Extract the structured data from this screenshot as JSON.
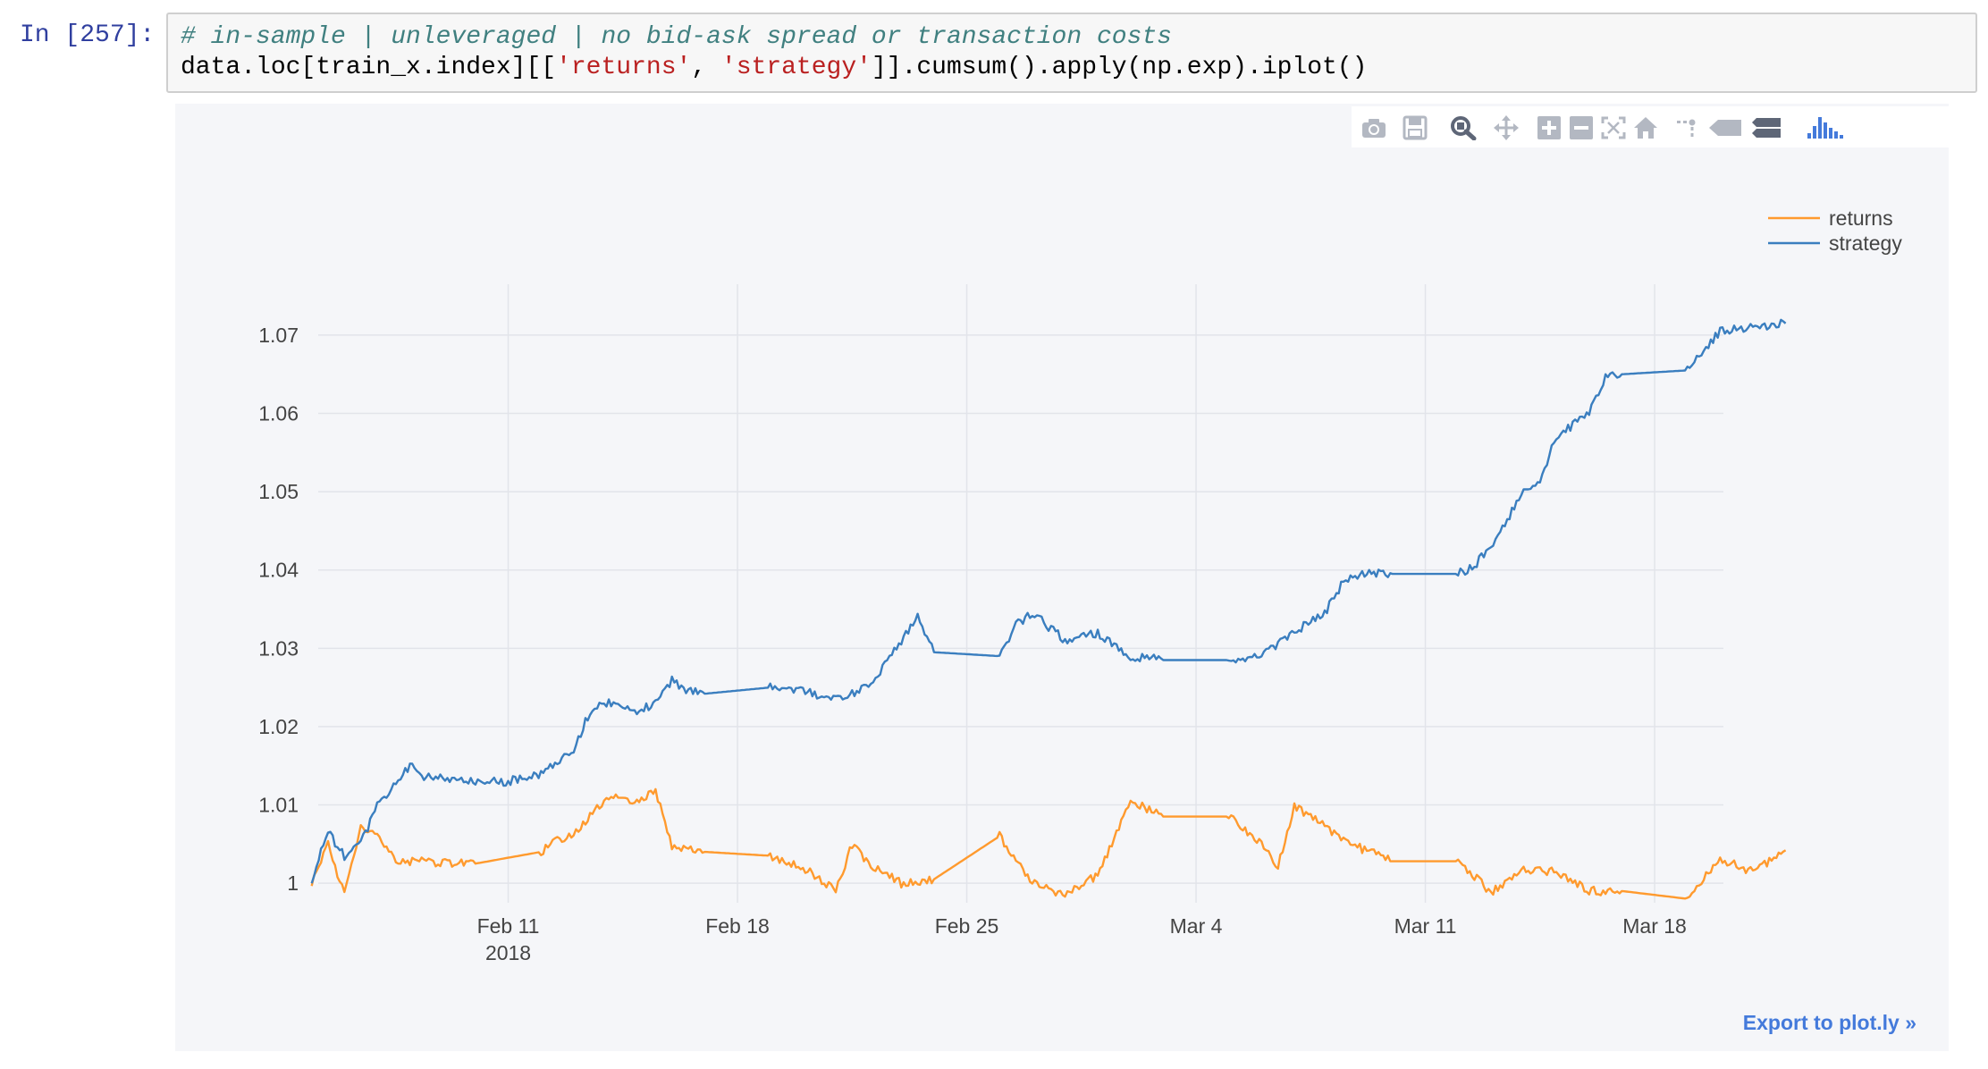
{
  "notebook": {
    "prompt": "In [257]:",
    "comment": "# in-sample | unleveraged | no bid-ask spread or transaction costs",
    "code_prefix": "data.loc[train_x.index][[",
    "code_str1": "'returns'",
    "code_sep": ", ",
    "code_str2": "'strategy'",
    "code_suffix": "]].cumsum().apply(np.exp).iplot()"
  },
  "modebar": {
    "icons": [
      "camera-icon",
      "save-icon",
      "zoom-icon",
      "pan-icon",
      "zoom-in-icon",
      "zoom-out-icon",
      "autoscale-icon",
      "home-icon",
      "spikelines-icon",
      "hover-closest-icon",
      "hover-compare-icon",
      "plotly-logo-icon"
    ]
  },
  "export_link": "Export to plot.ly »",
  "chart_data": {
    "type": "line",
    "xlabel": "",
    "ylabel": "",
    "x_ticks": [
      "Feb 11",
      "Feb 18",
      "Feb 25",
      "Mar 4",
      "Mar 11",
      "Mar 18"
    ],
    "x_year_label": "2018",
    "y_ticks": [
      "1",
      "1.01",
      "1.02",
      "1.03",
      "1.04",
      "1.05",
      "1.06",
      "1.07"
    ],
    "ylim": [
      0.9975,
      1.0765
    ],
    "xlim_days": [
      5.2,
      48.1
    ],
    "grid": true,
    "legend": "top-right",
    "colors": {
      "returns": "#ff9a2e",
      "strategy": "#3a7ebf",
      "grid": "#e2e4ea",
      "axis_text": "#444444"
    },
    "series": [
      {
        "name": "returns",
        "color": "#ff9a2e",
        "x": [
          "2018-02-05",
          "2018-02-05T12:00",
          "2018-02-06",
          "2018-02-06T12:00",
          "2018-02-07",
          "2018-02-07T12:00",
          "2018-02-08",
          "2018-02-08T12:00",
          "2018-02-10",
          "2018-02-12",
          "2018-02-12T12:00",
          "2018-02-13",
          "2018-02-14",
          "2018-02-15",
          "2018-02-15T12:00",
          "2018-02-16",
          "2018-02-16T12:00",
          "2018-02-17",
          "2018-02-19",
          "2018-02-20",
          "2018-02-21",
          "2018-02-21T12:00",
          "2018-02-22",
          "2018-02-23",
          "2018-02-23T12:00",
          "2018-02-24",
          "2018-02-26",
          "2018-02-27",
          "2018-02-28",
          "2018-03-01",
          "2018-03-02",
          "2018-03-03",
          "2018-03-05",
          "2018-03-06",
          "2018-03-06T12:00",
          "2018-03-07",
          "2018-03-08",
          "2018-03-09",
          "2018-03-10",
          "2018-03-12",
          "2018-03-13",
          "2018-03-14",
          "2018-03-15",
          "2018-03-16",
          "2018-03-17",
          "2018-03-19",
          "2018-03-20",
          "2018-03-21",
          "2018-03-22"
        ],
        "values": [
          1.0,
          1.005,
          0.9985,
          1.007,
          1.0065,
          1.003,
          1.0028,
          1.0027,
          1.0025,
          1.004,
          1.0055,
          1.006,
          1.011,
          1.0105,
          1.012,
          1.0045,
          1.0042,
          1.004,
          1.0035,
          1.002,
          0.999,
          1.005,
          1.0025,
          1.0,
          1.0,
          1.0005,
          1.006,
          1.0,
          0.9985,
          1.001,
          1.0105,
          1.0085,
          1.0085,
          1.005,
          1.002,
          1.01,
          1.007,
          1.0045,
          1.0028,
          1.0028,
          0.9988,
          1.0018,
          1.0015,
          0.999,
          0.999,
          0.998,
          1.003,
          1.0015,
          1.0042
        ]
      },
      {
        "name": "strategy",
        "color": "#3a7ebf",
        "x": [
          "2018-02-05",
          "2018-02-05T12:00",
          "2018-02-06",
          "2018-02-06T12:00",
          "2018-02-07",
          "2018-02-08",
          "2018-02-08T12:00",
          "2018-02-10",
          "2018-02-11",
          "2018-02-12",
          "2018-02-13",
          "2018-02-13T12:00",
          "2018-02-14",
          "2018-02-15",
          "2018-02-15T12:00",
          "2018-02-16",
          "2018-02-16T12:00",
          "2018-02-17",
          "2018-02-19",
          "2018-02-20",
          "2018-02-21",
          "2018-02-22",
          "2018-02-23",
          "2018-02-23T12:00",
          "2018-02-24",
          "2018-02-26",
          "2018-02-26T12:00",
          "2018-02-27",
          "2018-02-28",
          "2018-03-01",
          "2018-03-02",
          "2018-03-03",
          "2018-03-05",
          "2018-03-06",
          "2018-03-07",
          "2018-03-08",
          "2018-03-08T12:00",
          "2018-03-09",
          "2018-03-10",
          "2018-03-12",
          "2018-03-12T12:00",
          "2018-03-13",
          "2018-03-14",
          "2018-03-14T12:00",
          "2018-03-15",
          "2018-03-16",
          "2018-03-16T12:00",
          "2018-03-17",
          "2018-03-19",
          "2018-03-20",
          "2018-03-21",
          "2018-03-22"
        ],
        "values": [
          1.0005,
          1.0065,
          1.0035,
          1.005,
          1.01,
          1.015,
          1.0135,
          1.013,
          1.013,
          1.014,
          1.017,
          1.022,
          1.023,
          1.022,
          1.023,
          1.026,
          1.0245,
          1.0242,
          1.025,
          1.0245,
          1.0235,
          1.025,
          1.031,
          1.034,
          1.0295,
          1.029,
          1.033,
          1.0345,
          1.031,
          1.032,
          1.029,
          1.0285,
          1.0285,
          1.029,
          1.032,
          1.035,
          1.0385,
          1.0395,
          1.0395,
          1.0395,
          1.0405,
          1.043,
          1.05,
          1.0515,
          1.057,
          1.06,
          1.0645,
          1.065,
          1.0655,
          1.0705,
          1.071,
          1.0715
        ]
      }
    ]
  }
}
